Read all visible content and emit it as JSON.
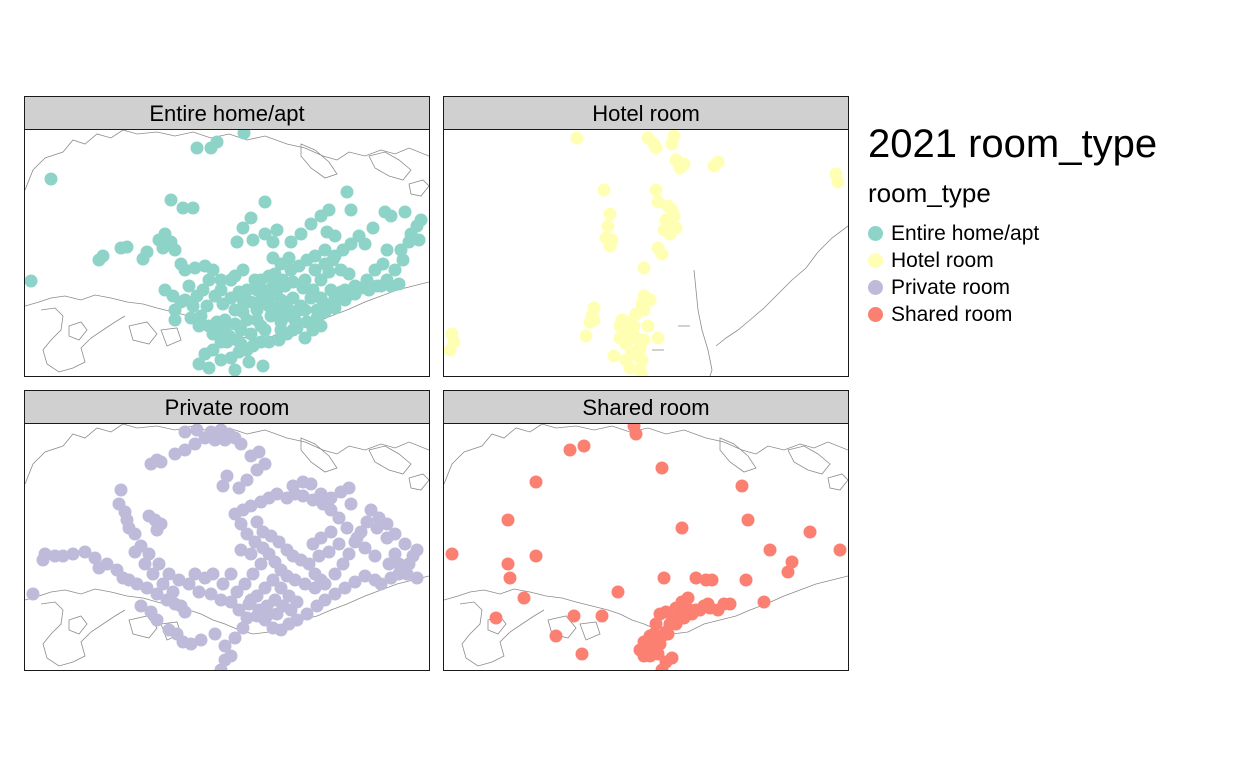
{
  "title": "2021 room_type",
  "legend": {
    "title": "room_type",
    "items": [
      {
        "label": "Entire home/apt",
        "color": "#8dd3c7"
      },
      {
        "label": "Hotel room",
        "color": "#ffffb3"
      },
      {
        "label": "Private room",
        "color": "#bebada"
      },
      {
        "label": "Shared room",
        "color": "#fb8072"
      }
    ]
  },
  "panels": [
    {
      "label": "Entire home/apt",
      "color": "#8dd3c7"
    },
    {
      "label": "Hotel room",
      "color": "#ffffb3"
    },
    {
      "label": "Private room",
      "color": "#bebada"
    },
    {
      "label": "Shared room",
      "color": "#fb8072"
    }
  ],
  "map": {
    "land_outline_color": "#8c8c8c",
    "point_radius_px": 6.5
  }
}
